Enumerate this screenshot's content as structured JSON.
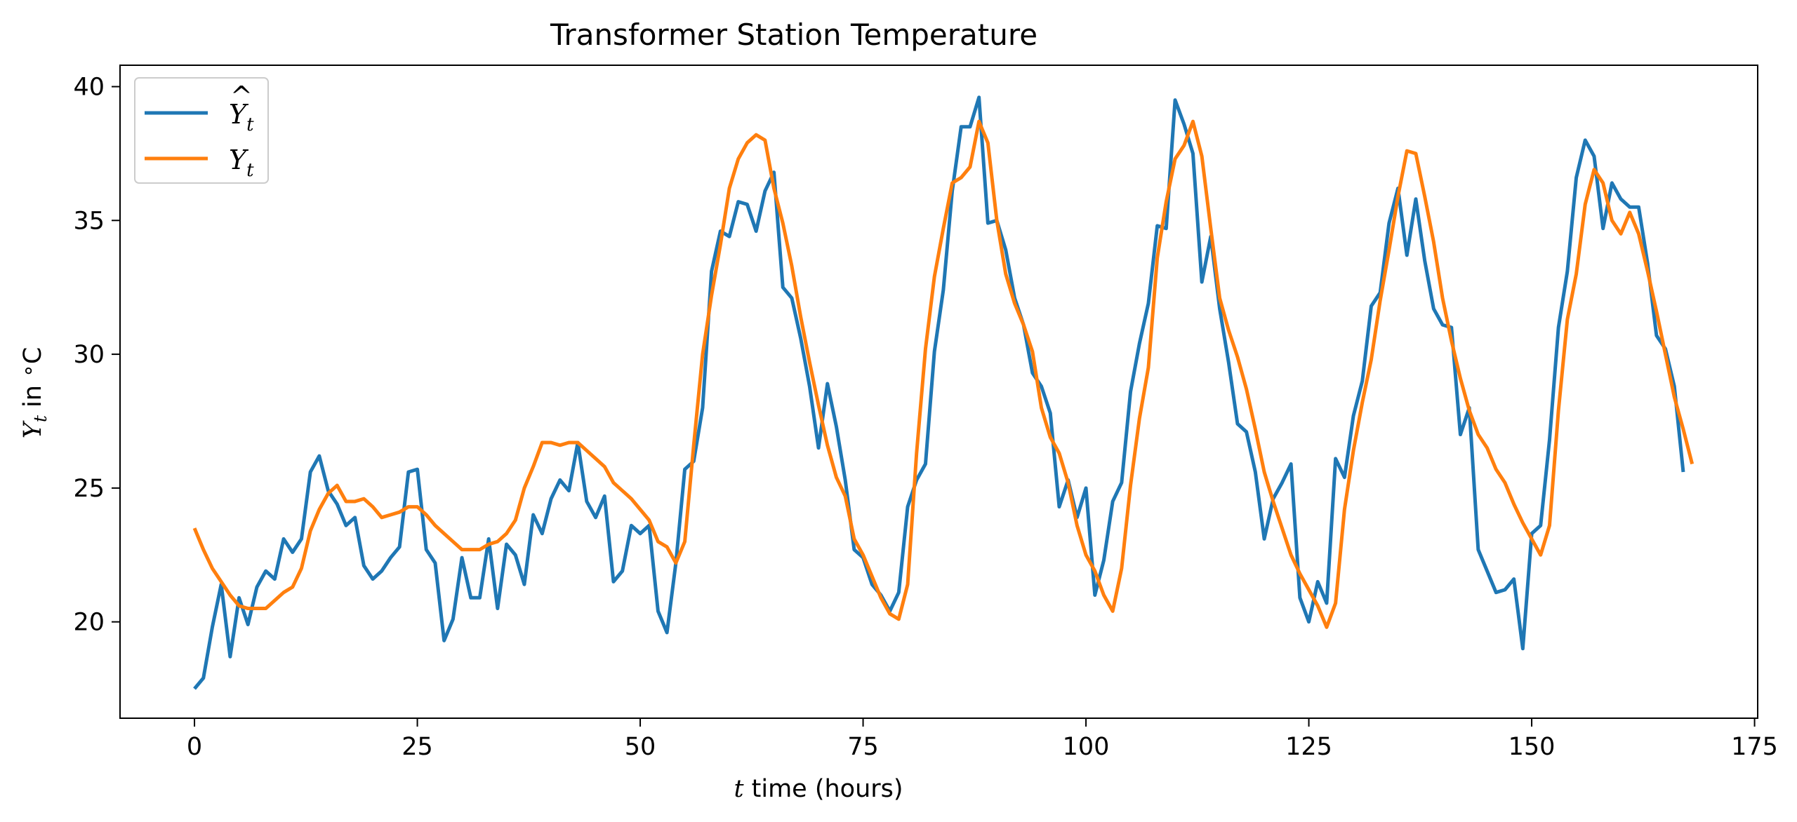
{
  "chart_data": {
    "type": "line",
    "title": "Transformer Station Temperature",
    "xlabel_var": "t",
    "xlabel_rest": " time (hours)",
    "ylabel": "Y_t in °C",
    "xlim": [
      -8.35,
      175.35
    ],
    "ylim": [
      16.4,
      40.8
    ],
    "xticks": [
      0,
      25,
      50,
      75,
      100,
      125,
      150,
      175
    ],
    "yticks": [
      20,
      25,
      30,
      35,
      40
    ],
    "grid": false,
    "legend_position": "upper-left",
    "series": [
      {
        "name": "Ŷ_t",
        "color": "#1f77b4",
        "values": [
          17.5,
          17.9,
          19.8,
          21.4,
          18.7,
          20.9,
          19.9,
          21.3,
          21.9,
          21.6,
          23.1,
          22.6,
          23.1,
          25.6,
          26.2,
          24.9,
          24.4,
          23.6,
          23.9,
          22.1,
          21.6,
          21.9,
          22.4,
          22.8,
          25.6,
          25.7,
          22.7,
          22.2,
          19.3,
          20.1,
          22.4,
          20.9,
          20.9,
          23.1,
          20.5,
          22.9,
          22.5,
          21.4,
          24.0,
          23.3,
          24.6,
          25.3,
          24.9,
          26.7,
          24.5,
          23.9,
          24.7,
          21.5,
          21.9,
          23.6,
          23.3,
          23.6,
          20.4,
          19.6,
          22.2,
          25.7,
          26.0,
          28.0,
          33.1,
          34.6,
          34.4,
          35.7,
          35.6,
          34.6,
          36.1,
          36.8,
          32.5,
          32.1,
          30.6,
          28.8,
          26.5,
          28.9,
          27.3,
          25.3,
          22.7,
          22.4,
          21.4,
          21.0,
          20.4,
          21.1,
          24.3,
          25.3,
          25.9,
          30.1,
          32.4,
          36.1,
          38.5,
          38.5,
          39.6,
          34.9,
          35.0,
          33.9,
          32.1,
          31.1,
          29.3,
          28.8,
          27.8,
          24.3,
          25.3,
          23.9,
          25.0,
          21.0,
          22.3,
          24.5,
          25.2,
          28.6,
          30.4,
          31.9,
          34.8,
          34.7,
          39.5,
          38.6,
          37.5,
          32.7,
          34.4,
          31.7,
          29.7,
          27.4,
          27.1,
          25.6,
          23.1,
          24.6,
          25.2,
          25.9,
          20.9,
          20.0,
          21.5,
          20.7,
          26.1,
          25.4,
          27.7,
          29.0,
          31.8,
          32.3,
          34.9,
          36.2,
          33.7,
          35.8,
          33.5,
          31.7,
          31.1,
          31.0,
          27.0,
          28.0,
          22.7,
          21.9,
          21.1,
          21.2,
          21.6,
          19.0,
          23.3,
          23.6,
          26.8,
          31.0,
          33.1,
          36.6,
          38.0,
          37.4,
          34.7,
          36.4,
          35.8,
          35.5,
          35.5,
          33.4,
          30.7,
          30.2,
          28.8,
          25.6
        ]
      },
      {
        "name": "Y_t",
        "color": "#ff7f0e",
        "values": [
          23.5,
          22.7,
          22.0,
          21.5,
          21.0,
          20.6,
          20.5,
          20.5,
          20.5,
          20.8,
          21.1,
          21.3,
          22.0,
          23.4,
          24.2,
          24.8,
          25.1,
          24.5,
          24.5,
          24.6,
          24.3,
          23.9,
          24.0,
          24.1,
          24.3,
          24.3,
          24.0,
          23.6,
          23.3,
          23.0,
          22.7,
          22.7,
          22.7,
          22.9,
          23.0,
          23.3,
          23.8,
          25.0,
          25.8,
          26.7,
          26.7,
          26.6,
          26.7,
          26.7,
          26.4,
          26.1,
          25.8,
          25.2,
          24.9,
          24.6,
          24.2,
          23.8,
          23.0,
          22.8,
          22.2,
          23.0,
          26.6,
          30.0,
          32.2,
          34.1,
          36.2,
          37.3,
          37.9,
          38.2,
          38.0,
          36.2,
          34.9,
          33.3,
          31.4,
          29.7,
          28.1,
          26.6,
          25.4,
          24.7,
          23.1,
          22.5,
          21.7,
          20.9,
          20.3,
          20.1,
          21.4,
          26.3,
          30.2,
          32.9,
          34.7,
          36.4,
          36.6,
          37.0,
          38.7,
          37.9,
          35.0,
          33.0,
          31.9,
          31.1,
          30.1,
          28.0,
          26.9,
          26.3,
          25.2,
          23.6,
          22.5,
          21.9,
          21.0,
          20.4,
          22.0,
          25.1,
          27.6,
          29.5,
          33.6,
          35.7,
          37.3,
          37.8,
          38.7,
          37.4,
          34.7,
          32.1,
          30.9,
          29.9,
          28.7,
          27.2,
          25.6,
          24.5,
          23.5,
          22.5,
          21.8,
          21.2,
          20.6,
          19.8,
          20.7,
          24.2,
          26.4,
          28.2,
          29.8,
          32.0,
          33.9,
          35.9,
          37.6,
          37.5,
          35.9,
          34.2,
          32.1,
          30.5,
          29.1,
          27.9,
          27.0,
          26.5,
          25.7,
          25.2,
          24.4,
          23.7,
          23.1,
          22.5,
          23.6,
          27.9,
          31.3,
          33.0,
          35.6,
          36.9,
          36.4,
          35.0,
          34.5,
          35.3,
          34.5,
          33.1,
          31.6,
          30.0,
          28.4,
          27.2,
          25.9
        ]
      }
    ]
  }
}
